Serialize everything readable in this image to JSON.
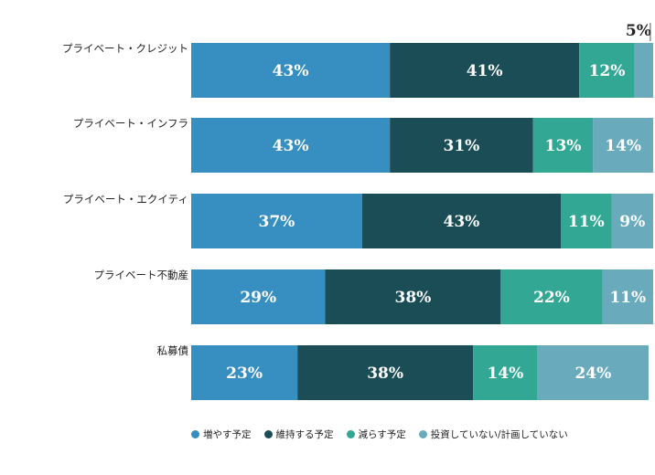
{
  "chart_data": {
    "type": "bar",
    "orientation": "horizontal",
    "stacked": true,
    "title": "",
    "xlabel": "",
    "ylabel": "",
    "xlim": [
      0,
      100
    ],
    "unit": "%",
    "categories": [
      "プライベート・クレジット",
      "プライベート・インフラ",
      "プライベート・エクイティ",
      "プライベート不動産",
      "私募債"
    ],
    "series": [
      {
        "name": "増やす予定",
        "color": "#368fc0",
        "values": [
          43,
          43,
          37,
          29,
          23
        ]
      },
      {
        "name": "維持する予定",
        "color": "#1a4d56",
        "values": [
          41,
          31,
          43,
          38,
          38
        ]
      },
      {
        "name": "減らす予定",
        "color": "#32a894",
        "values": [
          12,
          13,
          11,
          22,
          14
        ]
      },
      {
        "name": "投資していない/計画していない",
        "color": "#6aaabd",
        "values": [
          5,
          14,
          9,
          11,
          24
        ]
      }
    ],
    "data_labels": [
      [
        "43%",
        "41%",
        "12%",
        "5%"
      ],
      [
        "43%",
        "31%",
        "13%",
        "14%"
      ],
      [
        "37%",
        "43%",
        "11%",
        "9%"
      ],
      [
        "29%",
        "38%",
        "22%",
        "11%"
      ],
      [
        "23%",
        "38%",
        "14%",
        "24%"
      ]
    ],
    "outside_labels": [
      [
        false,
        false,
        false,
        true
      ],
      [
        false,
        false,
        false,
        false
      ],
      [
        false,
        false,
        false,
        false
      ],
      [
        false,
        false,
        false,
        false
      ],
      [
        false,
        false,
        false,
        false
      ]
    ],
    "grid": false,
    "legend_position": "bottom"
  }
}
